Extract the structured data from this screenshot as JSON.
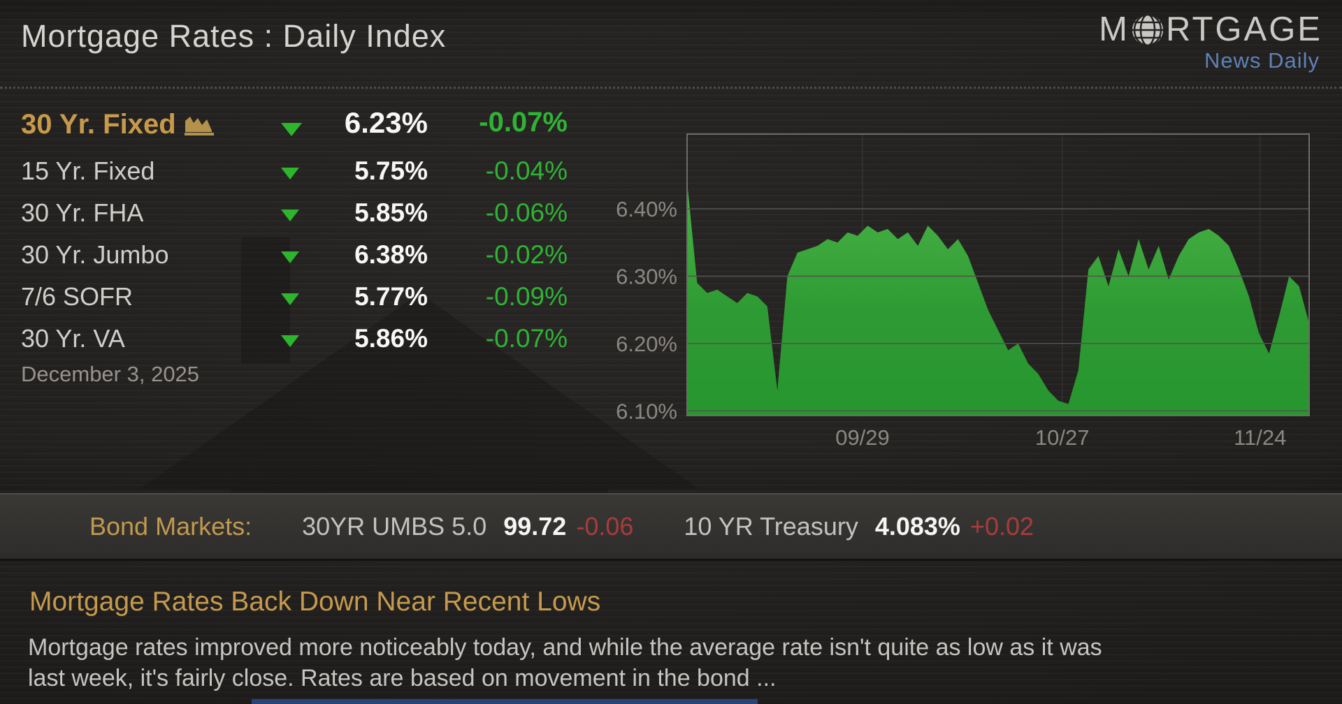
{
  "header": {
    "title": "Mortgage Rates : Daily Index",
    "logo": {
      "part1": "M",
      "part2": "RTGAGE",
      "subtitle": "News Daily",
      "brand_blue": "#5d82b8"
    }
  },
  "rates": {
    "rows": [
      {
        "label": "30 Yr. Fixed",
        "value": "6.23%",
        "change": "-0.07%",
        "direction": "down",
        "featured": true
      },
      {
        "label": "15 Yr. Fixed",
        "value": "5.75%",
        "change": "-0.04%",
        "direction": "down"
      },
      {
        "label": "30 Yr. FHA",
        "value": "5.85%",
        "change": "-0.06%",
        "direction": "down"
      },
      {
        "label": "30 Yr. Jumbo",
        "value": "6.38%",
        "change": "-0.02%",
        "direction": "down"
      },
      {
        "label": "7/6 SOFR",
        "value": "5.77%",
        "change": "-0.09%",
        "direction": "down"
      },
      {
        "label": "30 Yr. VA",
        "value": "5.86%",
        "change": "-0.07%",
        "direction": "down"
      }
    ],
    "date": "December 3, 2025",
    "down_triangle_color": "#2db52d",
    "up_color": "#2fb335",
    "featured_gold": "#c79a4b"
  },
  "chart_data": {
    "type": "area",
    "title": "30 Yr. Fixed daily rate, last 3 months",
    "ylabel": "",
    "xlabel": "",
    "ylim": [
      6.093,
      6.511
    ],
    "yticks": [
      "6.40%",
      "6.30%",
      "6.20%",
      "6.10%"
    ],
    "xticks": [
      {
        "label": "09/29",
        "pos": 0.282
      },
      {
        "label": "10/27",
        "pos": 0.603
      },
      {
        "label": "11/24",
        "pos": 0.921
      }
    ],
    "grid": true,
    "fill_top": "#49b546",
    "fill_bottom": "#27962e",
    "values": [
      6.44,
      6.29,
      6.275,
      6.28,
      6.27,
      6.26,
      6.275,
      6.27,
      6.255,
      6.13,
      6.3,
      6.335,
      6.34,
      6.345,
      6.355,
      6.35,
      6.365,
      6.36,
      6.375,
      6.365,
      6.37,
      6.355,
      6.365,
      6.345,
      6.375,
      6.36,
      6.34,
      6.355,
      6.33,
      6.29,
      6.25,
      6.22,
      6.19,
      6.2,
      6.17,
      6.155,
      6.13,
      6.115,
      6.11,
      6.16,
      6.31,
      6.33,
      6.285,
      6.34,
      6.3,
      6.355,
      6.31,
      6.345,
      6.295,
      6.33,
      6.355,
      6.365,
      6.37,
      6.36,
      6.345,
      6.31,
      6.27,
      6.215,
      6.185,
      6.24,
      6.3,
      6.285,
      6.23
    ]
  },
  "bond_bar": {
    "label": "Bond Markets:",
    "items": [
      {
        "name": "30YR UMBS 5.0",
        "value": "99.72",
        "change": "-0.06",
        "change_dir": "down"
      },
      {
        "name": "10 YR Treasury",
        "value": "4.083%",
        "change": "+0.02",
        "change_dir": "up"
      }
    ],
    "change_red": "#a83c3c"
  },
  "article": {
    "headline": "Mortgage Rates Back Down Near Recent Lows",
    "body": "Mortgage rates improved more noticeably today, and while the average rate isn't quite as low as it was last week, it's fairly close.  Rates are based on movement in the bond ..."
  }
}
